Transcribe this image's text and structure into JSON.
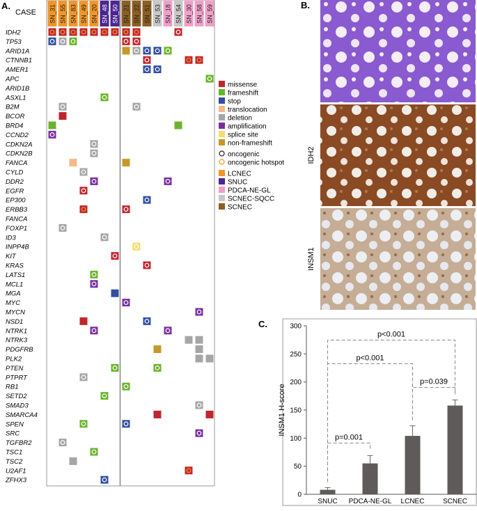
{
  "panel_a": {
    "label": "A.",
    "case_label": "CASE",
    "cases": [
      {
        "name": "SN_31",
        "group": "LCNEC"
      },
      {
        "name": "SN_55",
        "group": "LCNEC"
      },
      {
        "name": "SN_83",
        "group": "LCNEC"
      },
      {
        "name": "SN_49",
        "group": "LCNEC"
      },
      {
        "name": "SN_20",
        "group": "LCNEC"
      },
      {
        "name": "SN_48",
        "group": "SNUC"
      },
      {
        "name": "SN_50",
        "group": "SNUC"
      },
      {
        "name": "SN_21",
        "group": "SCNEC"
      },
      {
        "name": "SN_22",
        "group": "SCNEC"
      },
      {
        "name": "SN_51",
        "group": "SCNEC"
      },
      {
        "name": "SN_53",
        "group": "SCNEC-SQCC"
      },
      {
        "name": "SN_18",
        "group": "PDCA-NE-GL"
      },
      {
        "name": "SN_54",
        "group": "SCNEC-SQCC"
      },
      {
        "name": "SN_30",
        "group": "PDCA-NE-GL"
      },
      {
        "name": "SN_58",
        "group": "PDCA-NE-GL"
      },
      {
        "name": "SN_59",
        "group": "PDCA-NE-GL"
      }
    ],
    "alteration_types": [
      {
        "name": "missense",
        "color": "#c0262d"
      },
      {
        "name": "frameshift",
        "color": "#6ab42d"
      },
      {
        "name": "stop",
        "color": "#2f4fa0"
      },
      {
        "name": "translocation",
        "color": "#f5b98a"
      },
      {
        "name": "deletion",
        "color": "#a6a6a6"
      },
      {
        "name": "amplification",
        "color": "#7a2fa0"
      },
      {
        "name": "splice site",
        "color": "#f5dc6e"
      },
      {
        "name": "non-frameshift",
        "color": "#c49a2a"
      }
    ],
    "markers": [
      {
        "name": "oncogenic",
        "color": "#222222"
      },
      {
        "name": "oncogenic hotspot",
        "color": "#f0962a"
      }
    ],
    "groups": [
      {
        "name": "LCNEC",
        "color": "#f0962a"
      },
      {
        "name": "SNUC",
        "color": "#4b2590"
      },
      {
        "name": "PDCA-NE-GL",
        "color": "#f0a0c8"
      },
      {
        "name": "SCNEC-SQCC",
        "color": "#c8c8c8"
      },
      {
        "name": "SCNEC",
        "color": "#8b5e23"
      }
    ],
    "genes": [
      {
        "name": "IDH2",
        "alterations": [
          [
            0,
            "missense",
            "oncogenic hotspot"
          ],
          [
            1,
            "missense",
            "oncogenic hotspot"
          ],
          [
            2,
            "missense",
            "oncogenic hotspot"
          ],
          [
            3,
            "missense",
            "oncogenic hotspot"
          ],
          [
            4,
            "missense",
            "oncogenic hotspot"
          ],
          [
            5,
            "missense",
            "oncogenic hotspot"
          ],
          [
            6,
            "missense",
            "oncogenic hotspot"
          ],
          [
            7,
            "missense",
            "oncogenic hotspot"
          ],
          [
            8,
            "missense",
            "oncogenic hotspot"
          ],
          [
            12,
            "missense",
            "oncogenic"
          ]
        ]
      },
      {
        "name": "TP53",
        "alterations": [
          [
            0,
            "stop",
            "oncogenic"
          ],
          [
            1,
            "deletion",
            "oncogenic"
          ],
          [
            2,
            "frameshift",
            "oncogenic"
          ],
          [
            7,
            "missense",
            "oncogenic"
          ],
          [
            8,
            "missense",
            "oncogenic"
          ]
        ]
      },
      {
        "name": "ARID1A",
        "alterations": [
          [
            7,
            "non-frameshift"
          ],
          [
            8,
            "deletion",
            "oncogenic"
          ],
          [
            9,
            "stop",
            "oncogenic"
          ],
          [
            10,
            "stop",
            "oncogenic"
          ],
          [
            11,
            "frameshift",
            "oncogenic"
          ]
        ]
      },
      {
        "name": "CTNNB1",
        "alterations": [
          [
            9,
            "missense",
            "oncogenic"
          ],
          [
            13,
            "missense",
            "oncogenic hotspot"
          ],
          [
            14,
            "missense",
            "oncogenic hotspot"
          ]
        ]
      },
      {
        "name": "AMER1",
        "alterations": [
          [
            9,
            "stop",
            "oncogenic"
          ],
          [
            10,
            "stop",
            "oncogenic"
          ]
        ]
      },
      {
        "name": "APC",
        "alterations": [
          [
            15,
            "frameshift",
            "oncogenic"
          ]
        ]
      },
      {
        "name": "ARID1B",
        "alterations": []
      },
      {
        "name": "ASXL1",
        "alterations": [
          [
            5,
            "frameshift",
            "oncogenic"
          ]
        ]
      },
      {
        "name": "B2M",
        "alterations": [
          [
            1,
            "deletion",
            "oncogenic"
          ],
          [
            8,
            "deletion",
            "oncogenic"
          ]
        ]
      },
      {
        "name": "BCOR",
        "alterations": [
          [
            1,
            "missense"
          ]
        ]
      },
      {
        "name": "BRD4",
        "alterations": [
          [
            0,
            "frameshift"
          ],
          [
            12,
            "frameshift"
          ]
        ]
      },
      {
        "name": "CCND2",
        "alterations": [
          [
            0,
            "amplification",
            "oncogenic"
          ]
        ]
      },
      {
        "name": "CDKN2A",
        "alterations": [
          [
            4,
            "deletion",
            "oncogenic"
          ]
        ]
      },
      {
        "name": "CDKN2B",
        "alterations": [
          [
            4,
            "deletion",
            "oncogenic"
          ]
        ]
      },
      {
        "name": "FANCA",
        "alterations": [
          [
            2,
            "translocation"
          ],
          [
            7,
            "non-frameshift"
          ]
        ]
      },
      {
        "name": "CYLD",
        "alterations": [
          [
            3,
            "deletion",
            "oncogenic"
          ]
        ]
      },
      {
        "name": "DDR2",
        "alterations": [
          [
            4,
            "amplification",
            "oncogenic"
          ],
          [
            11,
            "amplification",
            "oncogenic"
          ]
        ]
      },
      {
        "name": "EGFR",
        "alterations": [
          [
            3,
            "missense",
            "oncogenic"
          ]
        ]
      },
      {
        "name": "EP300",
        "alterations": [
          [
            9,
            "stop",
            "oncogenic"
          ]
        ]
      },
      {
        "name": "ERBB3",
        "alterations": [
          [
            3,
            "missense",
            "oncogenic hotspot"
          ],
          [
            7,
            "missense",
            "oncogenic"
          ]
        ]
      },
      {
        "name": "FANCA",
        "alterations": []
      },
      {
        "name": "FOXP1",
        "alterations": [
          [
            1,
            "deletion",
            "oncogenic"
          ]
        ]
      },
      {
        "name": "ID3",
        "alterations": [
          [
            5,
            "deletion",
            "oncogenic"
          ]
        ]
      },
      {
        "name": "INPP4B",
        "alterations": [
          [
            8,
            "splice site",
            "oncogenic"
          ]
        ]
      },
      {
        "name": "KIT",
        "alterations": [
          [
            6,
            "missense",
            "oncogenic"
          ]
        ]
      },
      {
        "name": "KRAS",
        "alterations": [
          [
            9,
            "missense",
            "oncogenic"
          ]
        ]
      },
      {
        "name": "LATS1",
        "alterations": [
          [
            4,
            "frameshift",
            "oncogenic"
          ]
        ]
      },
      {
        "name": "MCL1",
        "alterations": [
          [
            4,
            "amplification",
            "oncogenic"
          ]
        ]
      },
      {
        "name": "MGA",
        "alterations": [
          [
            6,
            "stop"
          ]
        ]
      },
      {
        "name": "MYC",
        "alterations": [
          [
            7,
            "amplification",
            "oncogenic"
          ]
        ]
      },
      {
        "name": "MYCN",
        "alterations": [
          [
            14,
            "amplification",
            "oncogenic"
          ]
        ]
      },
      {
        "name": "NSD1",
        "alterations": [
          [
            3,
            "missense"
          ],
          [
            9,
            "stop",
            "oncogenic"
          ]
        ]
      },
      {
        "name": "NTRK1",
        "alterations": [
          [
            4,
            "amplification",
            "oncogenic"
          ],
          [
            11,
            "amplification",
            "oncogenic"
          ]
        ]
      },
      {
        "name": "NTRK3",
        "alterations": [
          [
            13,
            "deletion"
          ],
          [
            14,
            "deletion"
          ]
        ]
      },
      {
        "name": "PDGFRB",
        "alterations": [
          [
            10,
            "non-frameshift"
          ],
          [
            14,
            "deletion"
          ]
        ]
      },
      {
        "name": "PLK2",
        "alterations": [
          [
            14,
            "deletion"
          ],
          [
            15,
            "deletion"
          ]
        ]
      },
      {
        "name": "PTEN",
        "alterations": [
          [
            6,
            "frameshift",
            "oncogenic"
          ],
          [
            10,
            "frameshift",
            "oncogenic"
          ]
        ]
      },
      {
        "name": "PTPRT",
        "alterations": [
          [
            3,
            "deletion",
            "oncogenic"
          ]
        ]
      },
      {
        "name": "RB1",
        "alterations": [
          [
            7,
            "frameshift",
            "oncogenic"
          ]
        ]
      },
      {
        "name": "SETD2",
        "alterations": [
          [
            5,
            "frameshift",
            "oncogenic"
          ]
        ]
      },
      {
        "name": "SMAD3",
        "alterations": [
          [
            14,
            "deletion",
            "oncogenic"
          ]
        ]
      },
      {
        "name": "SMARCA4",
        "alterations": [
          [
            10,
            "missense"
          ],
          [
            15,
            "missense"
          ]
        ]
      },
      {
        "name": "SPEN",
        "alterations": [
          [
            3,
            "frameshift",
            "oncogenic"
          ],
          [
            7,
            "stop",
            "oncogenic"
          ]
        ]
      },
      {
        "name": "SRC",
        "alterations": [
          [
            14,
            "amplification",
            "oncogenic"
          ]
        ]
      },
      {
        "name": "TGFBR2",
        "alterations": [
          [
            1,
            "deletion",
            "oncogenic"
          ]
        ]
      },
      {
        "name": "TSC1",
        "alterations": [
          [
            4,
            "frameshift",
            "oncogenic"
          ]
        ]
      },
      {
        "name": "TSC2",
        "alterations": [
          [
            2,
            "deletion"
          ]
        ]
      },
      {
        "name": "U2AF1",
        "alterations": [
          [
            13,
            "missense",
            "oncogenic hotspot"
          ]
        ]
      },
      {
        "name": "ZFHX3",
        "alterations": [
          [
            5,
            "stop",
            "oncogenic"
          ]
        ]
      }
    ]
  },
  "panel_b": {
    "label": "B.",
    "stain_labels": [
      "IDH2",
      "INSM1"
    ]
  },
  "panel_c": {
    "label": "C.",
    "chart_data": {
      "type": "bar",
      "ylabel": "INSM1 H-score",
      "categories": [
        "SNUC",
        "PDCA-NE-GL",
        "LCNEC",
        "SCNEC"
      ],
      "values": [
        8,
        55,
        104,
        158
      ],
      "errors": [
        4,
        14,
        18,
        10
      ],
      "color": "#5f5b5b",
      "ylim": [
        0,
        300
      ],
      "yticks": [
        0,
        50,
        100,
        150,
        200,
        250,
        300
      ],
      "comparisons": [
        {
          "groups": [
            0,
            1
          ],
          "label": "p=0.001"
        },
        {
          "groups": [
            2,
            3
          ],
          "label": "p=0.039"
        },
        {
          "groups": [
            0,
            2
          ],
          "label": "p<0.001"
        },
        {
          "groups": [
            0,
            3
          ],
          "label": "p<0.001"
        }
      ]
    }
  }
}
